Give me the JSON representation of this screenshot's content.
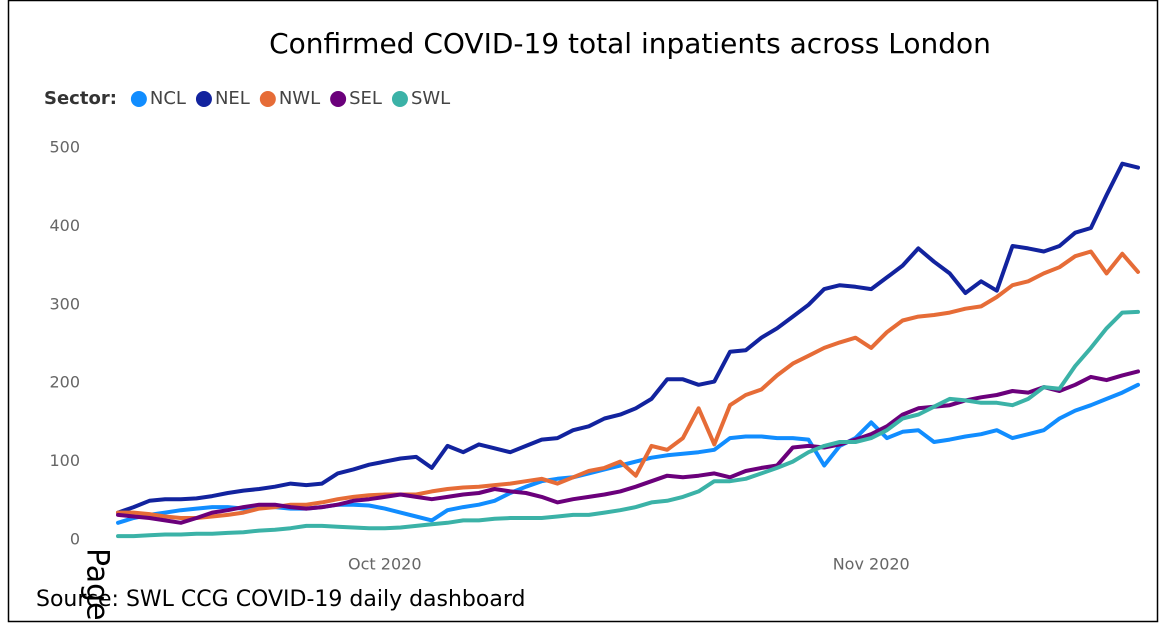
{
  "chart_data": {
    "type": "line",
    "title": "Confirmed COVID-19 total inpatients across London",
    "legend_title": "Sector:",
    "categories": [
      null,
      null,
      null,
      null,
      null,
      null,
      null,
      null,
      null,
      null,
      null,
      null,
      null,
      null,
      null,
      null,
      null,
      "Oct 2020",
      null,
      null,
      null,
      null,
      null,
      null,
      null,
      null,
      null,
      null,
      null,
      null,
      null,
      null,
      null,
      null,
      null,
      null,
      null,
      null,
      null,
      null,
      null,
      null,
      null,
      null,
      null,
      null,
      null,
      null,
      "Nov 2020",
      null,
      null,
      null,
      null,
      null,
      null,
      null,
      null,
      null,
      null,
      null,
      null,
      null,
      null,
      null,
      null,
      null
    ],
    "series": [
      {
        "name": "NCL",
        "color": "#118dff",
        "values": [
          22,
          28,
          32,
          35,
          38,
          40,
          42,
          42,
          40,
          42,
          42,
          40,
          40,
          42,
          45,
          45,
          44,
          40,
          35,
          30,
          25,
          38,
          42,
          45,
          50,
          60,
          68,
          75,
          78,
          80,
          85,
          90,
          95,
          100,
          105,
          108,
          110,
          112,
          115,
          130,
          132,
          132,
          130,
          130,
          128,
          95,
          120,
          130,
          150,
          130,
          138,
          140,
          125,
          128,
          132,
          135,
          140,
          130,
          135,
          140,
          155,
          165,
          172,
          180,
          188,
          198
        ]
      },
      {
        "name": "NEL",
        "color": "#12239e",
        "values": [
          35,
          42,
          50,
          52,
          52,
          53,
          56,
          60,
          63,
          65,
          68,
          72,
          70,
          72,
          85,
          90,
          96,
          100,
          104,
          106,
          92,
          120,
          112,
          122,
          117,
          112,
          120,
          128,
          130,
          140,
          145,
          155,
          160,
          168,
          180,
          205,
          205,
          198,
          202,
          240,
          242,
          258,
          270,
          285,
          300,
          320,
          325,
          323,
          320,
          335,
          350,
          372,
          355,
          340,
          315,
          330,
          318,
          375,
          372,
          368,
          375,
          392,
          398,
          440,
          480,
          475
        ]
      },
      {
        "name": "NWL",
        "color": "#e66c37",
        "values": [
          35,
          35,
          33,
          30,
          28,
          28,
          30,
          32,
          35,
          40,
          42,
          45,
          45,
          48,
          52,
          55,
          57,
          58,
          58,
          58,
          62,
          65,
          67,
          68,
          70,
          72,
          75,
          78,
          72,
          80,
          88,
          92,
          100,
          82,
          120,
          115,
          130,
          168,
          122,
          172,
          185,
          192,
          210,
          225,
          235,
          245,
          252,
          258,
          245,
          265,
          280,
          285,
          287,
          290,
          295,
          298,
          310,
          325,
          330,
          340,
          348,
          362,
          368,
          340,
          365,
          342
        ]
      },
      {
        "name": "SEL",
        "color": "#6b007b",
        "values": [
          32,
          30,
          28,
          25,
          22,
          28,
          35,
          38,
          42,
          45,
          45,
          42,
          40,
          42,
          45,
          50,
          52,
          55,
          58,
          55,
          52,
          55,
          58,
          60,
          65,
          62,
          60,
          55,
          48,
          52,
          55,
          58,
          62,
          68,
          75,
          82,
          80,
          82,
          85,
          80,
          88,
          92,
          95,
          118,
          120,
          118,
          122,
          128,
          135,
          145,
          160,
          168,
          170,
          172,
          178,
          182,
          185,
          190,
          188,
          195,
          190,
          198,
          208,
          204,
          210,
          215
        ]
      },
      {
        "name": "SWL",
        "color": "#3bb2a7",
        "values": [
          5,
          5,
          6,
          7,
          7,
          8,
          8,
          9,
          10,
          12,
          13,
          15,
          18,
          18,
          17,
          16,
          15,
          15,
          16,
          18,
          20,
          22,
          25,
          25,
          27,
          28,
          28,
          28,
          30,
          32,
          32,
          35,
          38,
          42,
          48,
          50,
          55,
          62,
          75,
          75,
          78,
          85,
          92,
          100,
          112,
          120,
          125,
          125,
          130,
          140,
          155,
          160,
          170,
          180,
          178,
          175,
          175,
          172,
          180,
          195,
          193,
          222,
          245,
          270,
          290,
          291
        ]
      }
    ],
    "ylim": [
      0,
      500
    ],
    "yticks": [
      0,
      100,
      200,
      300,
      400,
      500
    ],
    "grid": false
  },
  "source": "Source: SWL CCG COVID-19 daily dashboard",
  "page_label": "Page"
}
